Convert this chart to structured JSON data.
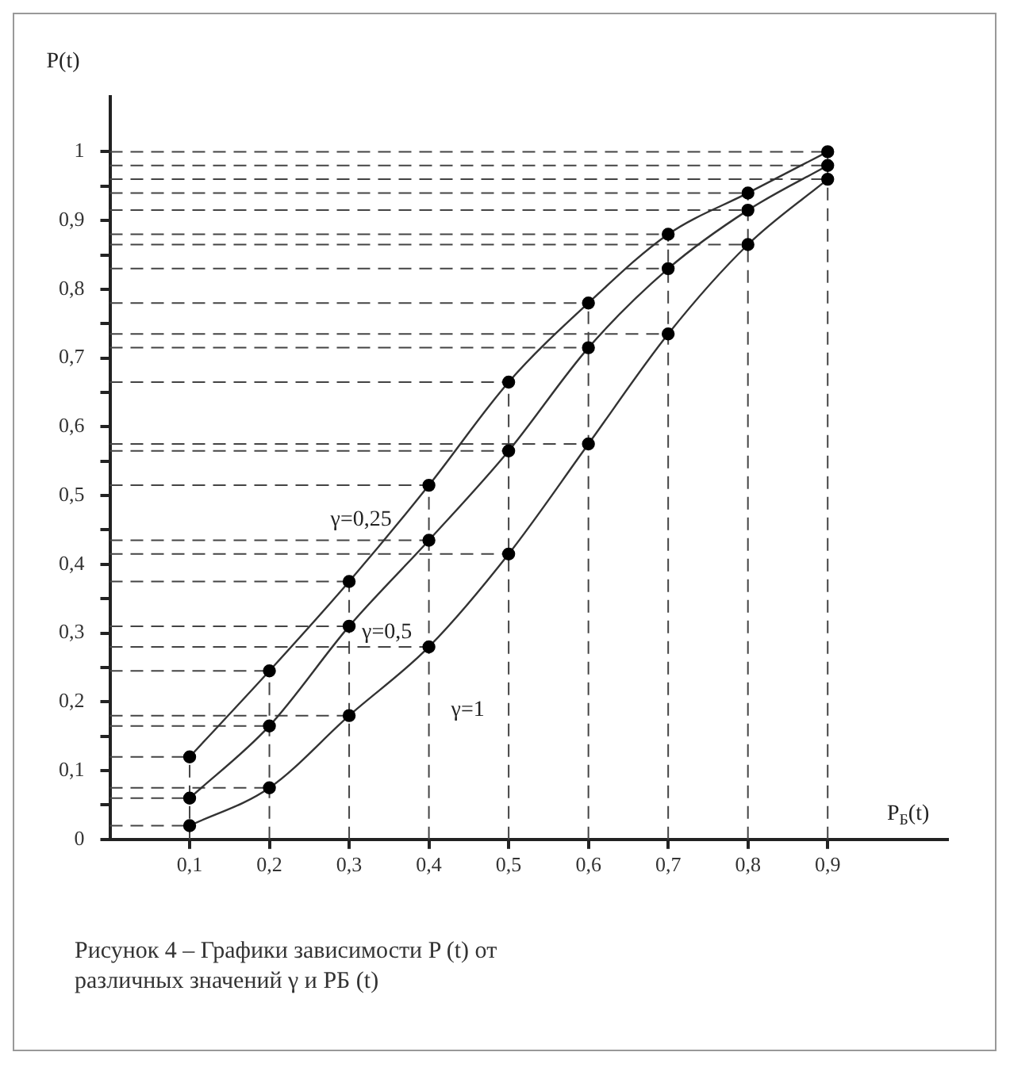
{
  "chart_data": {
    "type": "line",
    "xlabel": "P$_{Б}$(t)",
    "ylabel": "P(t)",
    "x": [
      0.1,
      0.2,
      0.3,
      0.4,
      0.5,
      0.6,
      0.7,
      0.8,
      0.9
    ],
    "series": [
      {
        "name": "γ=0,25",
        "color": "#333333",
        "values": [
          0.12,
          0.245,
          0.375,
          0.515,
          0.665,
          0.78,
          0.88,
          0.94,
          1.0
        ]
      },
      {
        "name": "γ=0,5",
        "color": "#333333",
        "values": [
          0.06,
          0.165,
          0.31,
          0.435,
          0.565,
          0.715,
          0.83,
          0.915,
          0.98
        ]
      },
      {
        "name": "γ=1",
        "color": "#333333",
        "values": [
          0.02,
          0.075,
          0.18,
          0.28,
          0.415,
          0.575,
          0.735,
          0.865,
          0.96
        ]
      }
    ],
    "xlim": [
      0,
      1.05
    ],
    "ylim": [
      0,
      1.08
    ],
    "xticks": [
      {
        "value": 0.1,
        "label": "0,1"
      },
      {
        "value": 0.2,
        "label": "0,2"
      },
      {
        "value": 0.3,
        "label": "0,3"
      },
      {
        "value": 0.4,
        "label": "0,4"
      },
      {
        "value": 0.5,
        "label": "0,5"
      },
      {
        "value": 0.6,
        "label": "0,6"
      },
      {
        "value": 0.7,
        "label": "0,7"
      },
      {
        "value": 0.8,
        "label": "0,8"
      },
      {
        "value": 0.9,
        "label": "0,9"
      }
    ],
    "yticks": [
      0,
      {
        "value": 0.05,
        "label": null
      },
      {
        "value": 0.1,
        "label": "0,1"
      },
      {
        "value": 0.15,
        "label": null
      },
      {
        "value": 0.2,
        "label": "0,2"
      },
      {
        "value": 0.25,
        "label": null
      },
      {
        "value": 0.3,
        "label": "0,3"
      },
      {
        "value": 0.35,
        "label": null
      },
      {
        "value": 0.4,
        "label": "0,4"
      },
      {
        "value": 0.45,
        "label": null
      },
      {
        "value": 0.5,
        "label": "0,5"
      },
      {
        "value": 0.55,
        "label": null
      },
      {
        "value": 0.6,
        "label": "0,6"
      },
      {
        "value": 0.65,
        "label": null
      },
      {
        "value": 0.7,
        "label": "0,7"
      },
      {
        "value": 0.75,
        "label": null
      },
      {
        "value": 0.8,
        "label": "0,8"
      },
      {
        "value": 0.85,
        "label": null
      },
      {
        "value": 0.9,
        "label": "0,9"
      },
      {
        "value": 0.95,
        "label": null
      },
      1
    ],
    "annotations": [
      "Рисунок 4 – Графики зависимости P (t) от различных значений γ и РБ (t)"
    ],
    "ref_lines": [
      {
        "axis": "y",
        "value": 0.12
      },
      {
        "axis": "y",
        "value": 0.245
      },
      {
        "axis": "y",
        "value": 0.375
      },
      {
        "axis": "y",
        "value": 0.515
      },
      {
        "axis": "y",
        "value": 0.665
      },
      {
        "axis": "y",
        "value": 0.78
      },
      {
        "axis": "y",
        "value": 0.88
      },
      {
        "axis": "y",
        "value": 0.94
      },
      {
        "axis": "y",
        "value": 1.0
      },
      {
        "axis": "y",
        "value": 0.06
      },
      {
        "axis": "y",
        "value": 0.165
      },
      {
        "axis": "y",
        "value": 0.31
      },
      {
        "axis": "y",
        "value": 0.435
      },
      {
        "axis": "y",
        "value": 0.565
      },
      {
        "axis": "y",
        "value": 0.715
      },
      {
        "axis": "y",
        "value": 0.83
      },
      {
        "axis": "y",
        "value": 0.915
      },
      {
        "axis": "y",
        "value": 0.98
      },
      {
        "axis": "y",
        "value": 0.02
      },
      {
        "axis": "y",
        "value": 0.075
      },
      {
        "axis": "y",
        "value": 0.18
      },
      {
        "axis": "y",
        "value": 0.28
      },
      {
        "axis": "y",
        "value": 0.415
      },
      {
        "axis": "y",
        "value": 0.575
      },
      {
        "axis": "y",
        "value": 0.735
      },
      {
        "axis": "y",
        "value": 0.865
      },
      {
        "axis": "y",
        "value": 0.96
      },
      {
        "axis": "x",
        "value": 0.1
      },
      {
        "axis": "x",
        "value": 0.2
      },
      {
        "axis": "x",
        "value": 0.3
      },
      {
        "axis": "x",
        "value": 0.4
      },
      {
        "axis": "x",
        "value": 0.5
      },
      {
        "axis": "x",
        "value": 0.6
      },
      {
        "axis": "x",
        "value": 0.7
      },
      {
        "axis": "x",
        "value": 0.8
      },
      {
        "axis": "x",
        "value": 0.9
      }
    ],
    "grid": false,
    "legend": false,
    "marker": "circle",
    "line_style": "solid"
  }
}
